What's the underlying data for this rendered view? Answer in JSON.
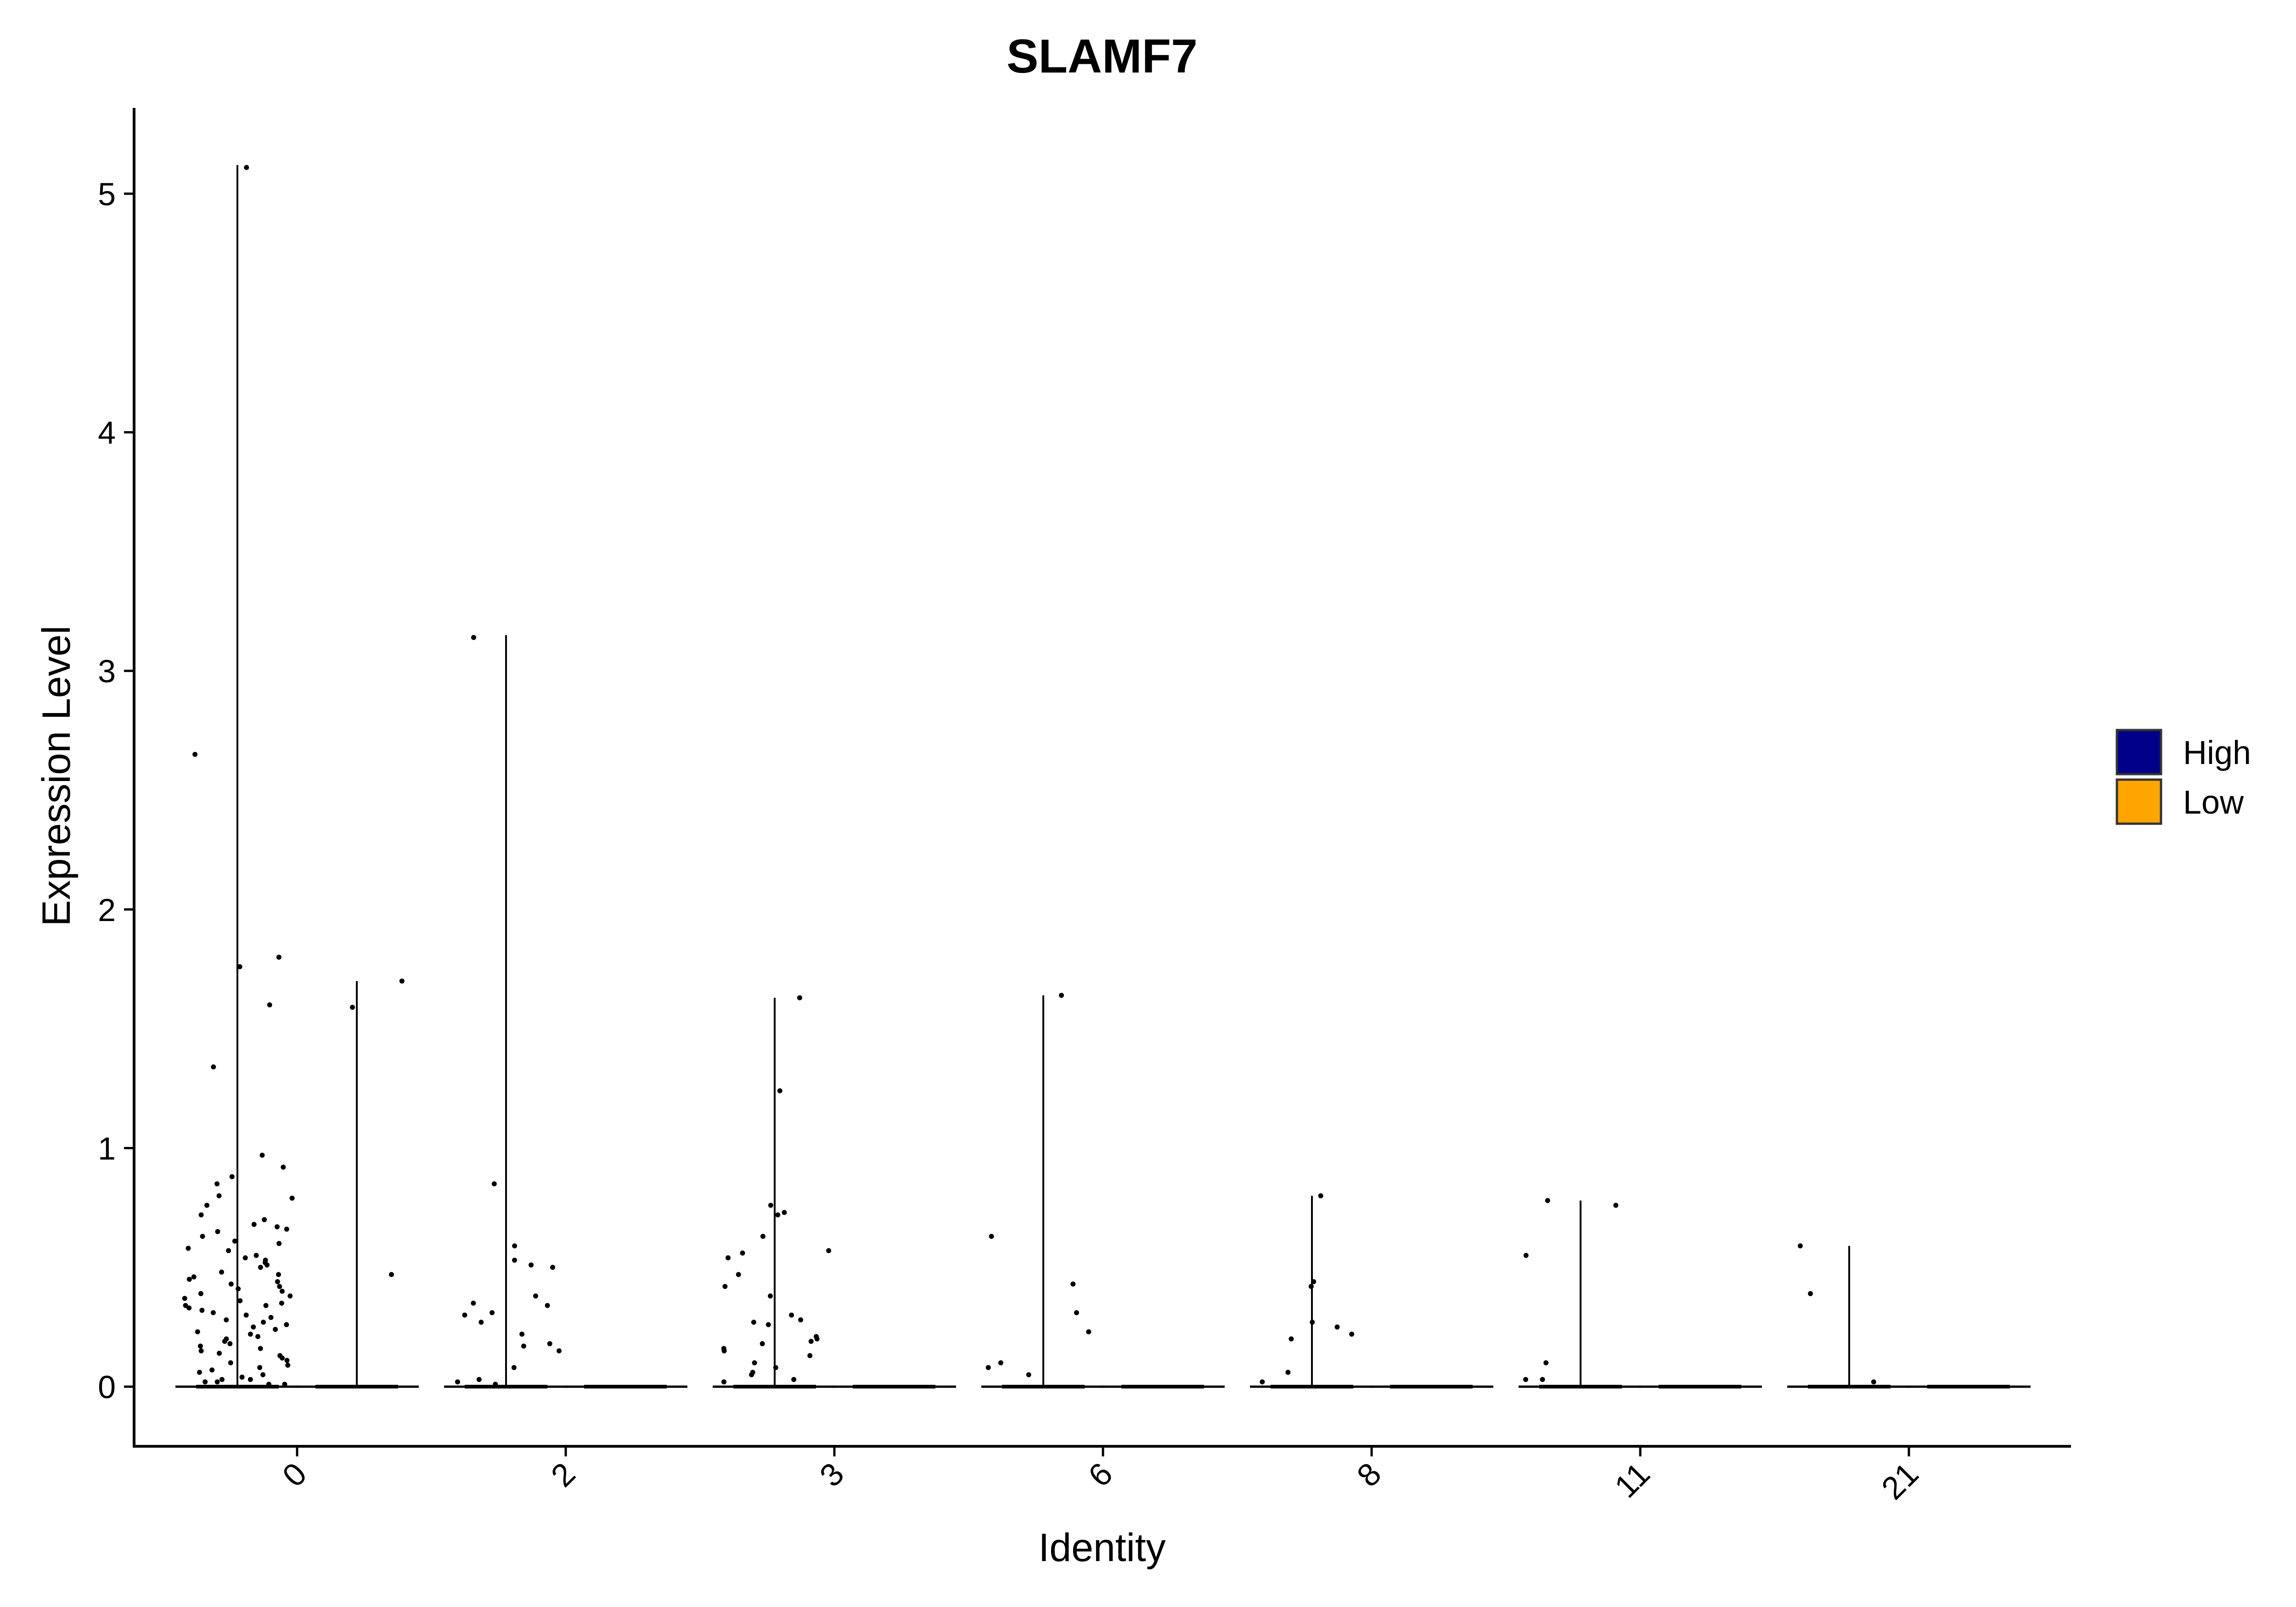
{
  "chart_data": {
    "type": "violin",
    "title": "SLAMF7",
    "xlabel": "Identity",
    "ylabel": "Expression Level",
    "categories": [
      "0",
      "2",
      "3",
      "6",
      "8",
      "11",
      "21"
    ],
    "ylim": [
      -0.25,
      5.35
    ],
    "yticks": [
      0,
      1,
      2,
      3,
      4,
      5
    ],
    "grid": false,
    "legend_position": "right",
    "colors": {
      "High": "#00008B",
      "Low": "#FFA500"
    },
    "series": [
      {
        "name": "High",
        "max": [
          5.12,
          3.15,
          1.63,
          1.64,
          0.8,
          0.78,
          0.59
        ],
        "points": [
          [
            5.11,
            2.65,
            1.8,
            1.76,
            1.6,
            1.34,
            0.97,
            0.92,
            0.88,
            0.85,
            0.8,
            0.79,
            0.76,
            0.72,
            0.7,
            0.68,
            0.67,
            0.66,
            0.65,
            0.63,
            0.61,
            0.6,
            0.58,
            0.57,
            0.55,
            0.54,
            0.53,
            0.52,
            0.51,
            0.5,
            0.48,
            0.47,
            0.46,
            0.45,
            0.44,
            0.43,
            0.42,
            0.41,
            0.4,
            0.39,
            0.38,
            0.37,
            0.36,
            0.35,
            0.34,
            0.34,
            0.33,
            0.32,
            0.31,
            0.3,
            0.29,
            0.28,
            0.27,
            0.26,
            0.25,
            0.24,
            0.23,
            0.22,
            0.21,
            0.2,
            0.19,
            0.18,
            0.17,
            0.16,
            0.15,
            0.14,
            0.13,
            0.12,
            0.11,
            0.1,
            0.09,
            0.08,
            0.07,
            0.06,
            0.05,
            0.04,
            0.03,
            0.03,
            0.02,
            0.02,
            0.01,
            0.01
          ],
          [
            3.14,
            0.85,
            0.59,
            0.53,
            0.51,
            0.5,
            0.38,
            0.35,
            0.34,
            0.31,
            0.3,
            0.27,
            0.22,
            0.18,
            0.17,
            0.15,
            0.08,
            0.03,
            0.02,
            0.01
          ],
          [
            1.63,
            1.24,
            0.76,
            0.73,
            0.72,
            0.63,
            0.57,
            0.56,
            0.54,
            0.47,
            0.42,
            0.38,
            0.3,
            0.28,
            0.27,
            0.26,
            0.21,
            0.2,
            0.19,
            0.18,
            0.16,
            0.15,
            0.13,
            0.1,
            0.08,
            0.06,
            0.05,
            0.03,
            0.02
          ],
          [
            1.64,
            0.63,
            0.43,
            0.31,
            0.23,
            0.1,
            0.08,
            0.05
          ],
          [
            0.8,
            0.44,
            0.42,
            0.27,
            0.25,
            0.22,
            0.2,
            0.06,
            0.02
          ],
          [
            0.78,
            0.76,
            0.55,
            0.1,
            0.03,
            0.03
          ],
          [
            0.59,
            0.39,
            0.02
          ]
        ]
      },
      {
        "name": "Low",
        "max": [
          1.7,
          0.0,
          0.0,
          0.0,
          0.0,
          0.0,
          0.0
        ],
        "points": [
          [
            1.7,
            1.59,
            0.47
          ],
          [],
          [],
          [],
          [],
          [],
          []
        ]
      }
    ]
  }
}
